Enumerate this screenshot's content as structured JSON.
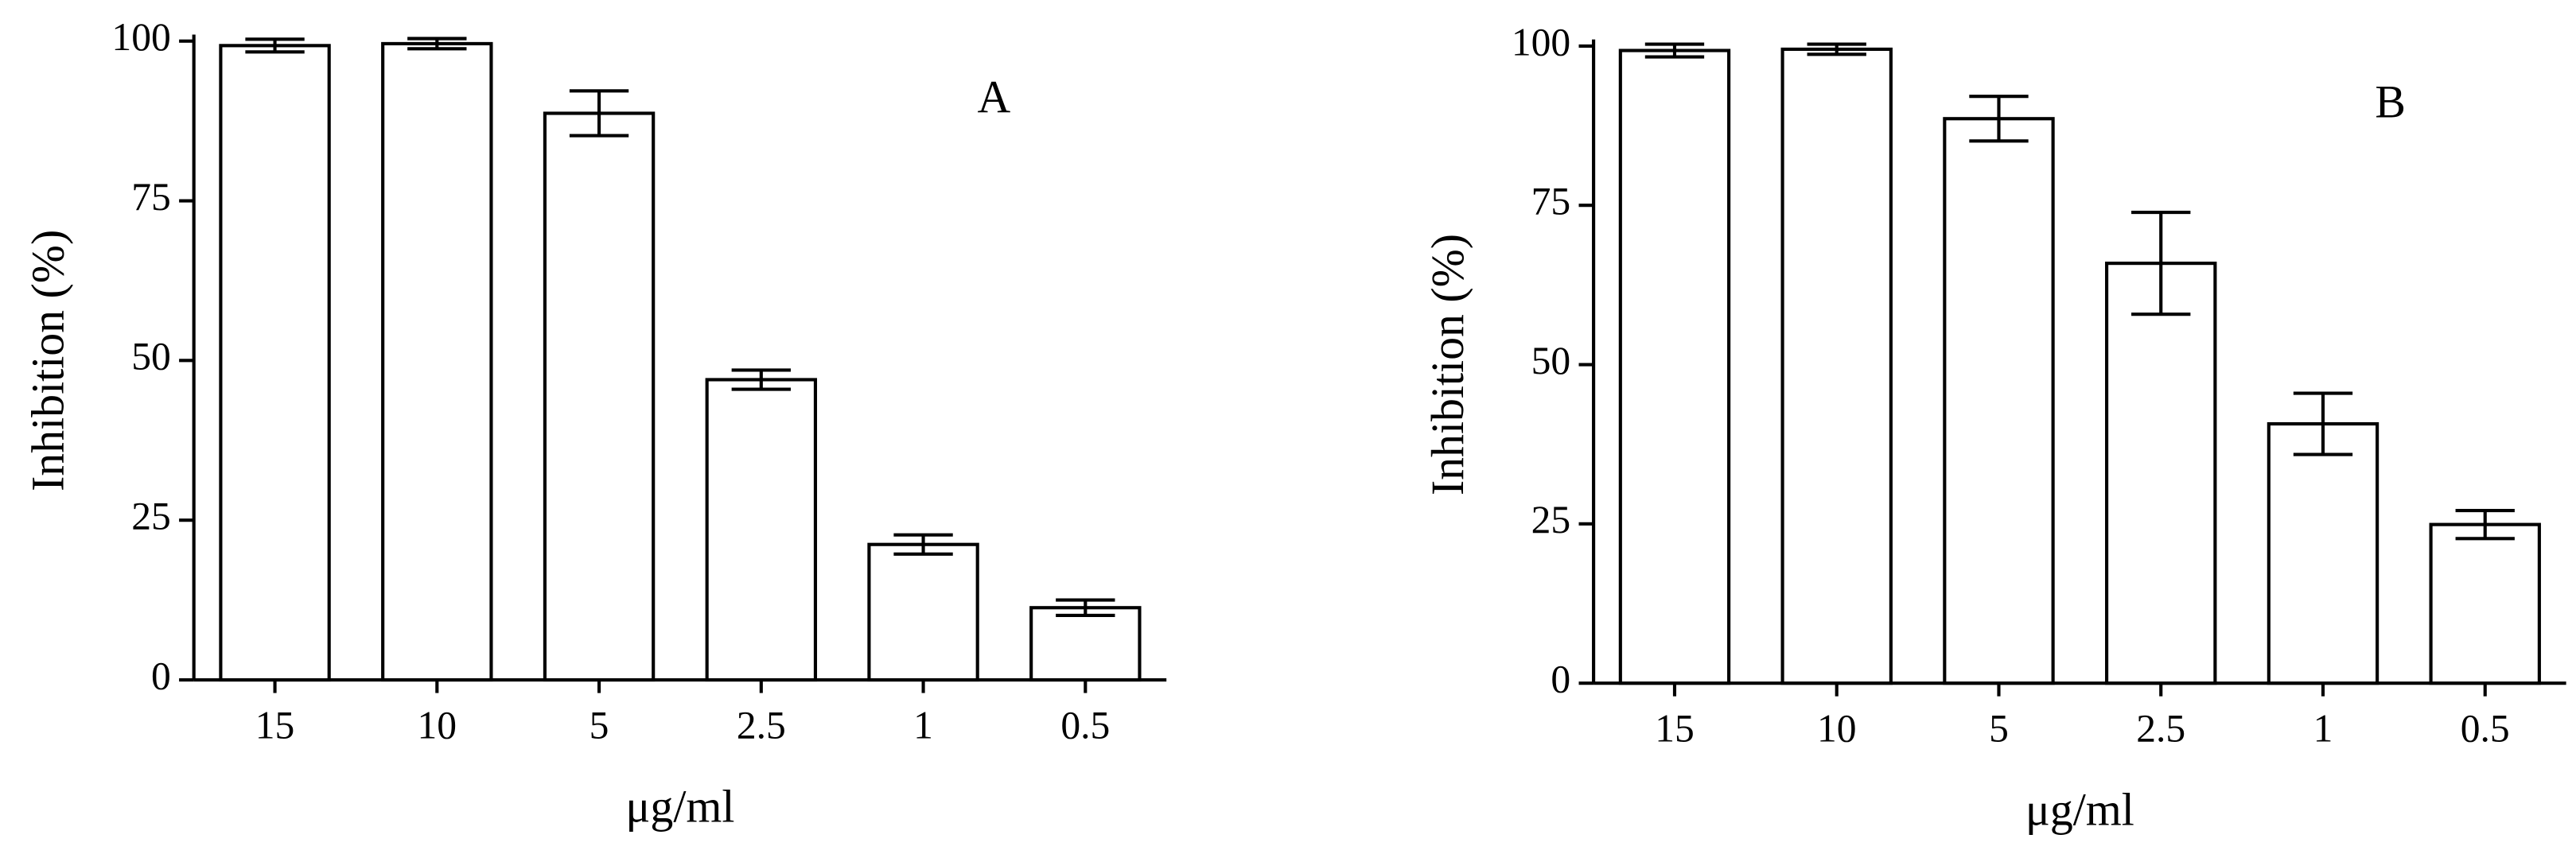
{
  "chart_data": [
    {
      "type": "bar",
      "annotation": "A",
      "x_label": "μg/ml",
      "y_label": "Inhibition (%)",
      "categories": [
        "15",
        "10",
        "5",
        "2.5",
        "1",
        "0.5"
      ],
      "values": [
        99.3,
        99.6,
        88.7,
        47.0,
        21.2,
        11.3
      ],
      "errors": [
        1.0,
        0.8,
        3.5,
        1.5,
        1.5,
        1.2
      ],
      "color": "#ffffff",
      "ylim": [
        0,
        100
      ],
      "yticks": [
        0,
        25,
        50,
        75,
        100
      ]
    },
    {
      "type": "bar",
      "annotation": "B",
      "x_label": "μg/ml",
      "y_label": "Inhibition (%)",
      "categories": [
        "15",
        "10",
        "5",
        "2.5",
        "1",
        "0.5"
      ],
      "values": [
        99.3,
        99.5,
        88.6,
        65.9,
        40.7,
        24.9
      ],
      "errors": [
        1.0,
        0.8,
        3.5,
        8.0,
        4.8,
        2.2
      ],
      "color": "#ffffff",
      "ylim": [
        0,
        100
      ],
      "yticks": [
        0,
        25,
        50,
        75,
        100
      ]
    }
  ]
}
